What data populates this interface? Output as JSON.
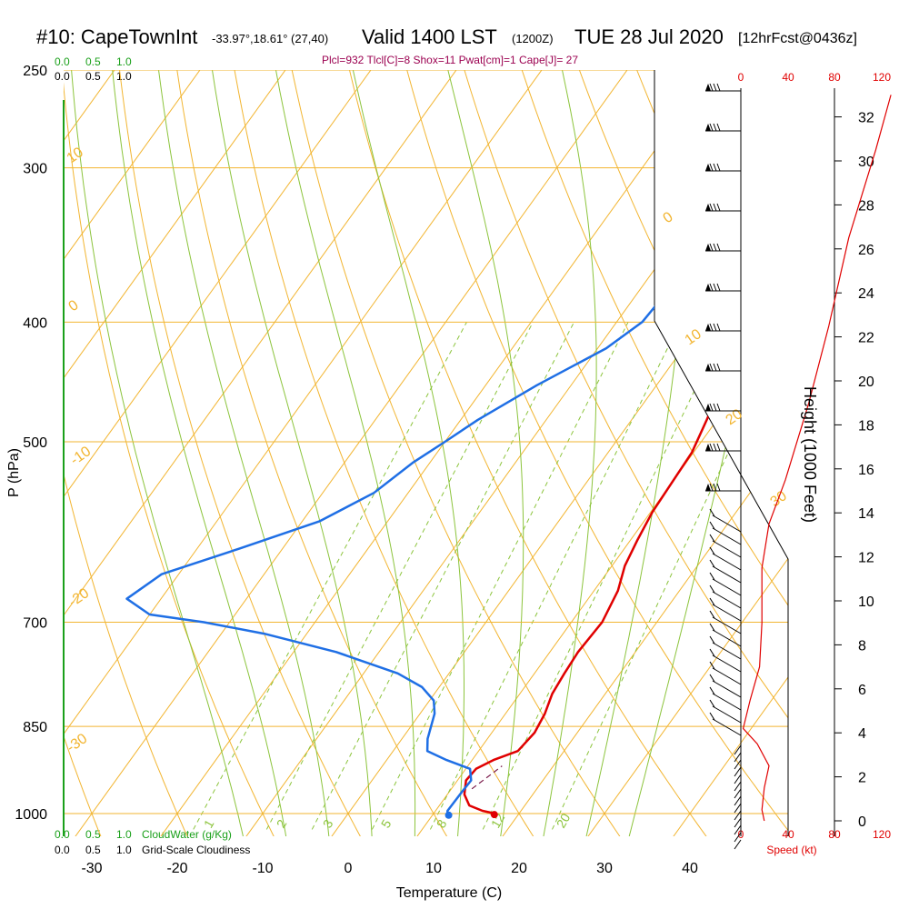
{
  "header": {
    "station": "#10: CapeTownInt",
    "coords": "-33.97°,18.61° (27,40)",
    "valid": "Valid 1400 LST",
    "zulu": "(1200Z)",
    "date": "TUE 28 Jul 2020",
    "forecast": "[12hrFcst@0436z]"
  },
  "params_text": "Plcl=932 Tlcl[C]=8 Shox=11 Pwat[cm]=1 Cape[J]= 27",
  "scales": {
    "cloudwater_ticks": [
      "0.0",
      "0.5",
      "1.0"
    ],
    "cloudiness_ticks": [
      "0.0",
      "0.5",
      "1.0"
    ],
    "cloudwater_label": "CloudWater (g/Kg)",
    "cloudiness_label": "Grid-Scale Cloudiness",
    "speed_ticks": [
      "0",
      "40",
      "80",
      "120"
    ],
    "speed_label": "Speed (kt)"
  },
  "chart_data": {
    "type": "line",
    "subtype": "skew-T log-P sounding",
    "xlabel": "Temperature (C)",
    "ylabel": "P (hPa)",
    "y2label": "Height (1000 Feet)",
    "x_ticks": [
      -30,
      -20,
      -10,
      0,
      10,
      20,
      30,
      40
    ],
    "p_ticks": [
      250,
      300,
      400,
      500,
      700,
      850,
      1000
    ],
    "height_ticks": [
      0,
      2,
      4,
      6,
      8,
      10,
      12,
      14,
      16,
      18,
      20,
      22,
      24,
      26,
      28,
      30,
      32
    ],
    "isotherm_labels": [
      "10",
      "0",
      "-10",
      "-20",
      "-30",
      "0",
      "10",
      "20",
      "30"
    ],
    "mixing_ratio_labels": [
      "1",
      "2",
      "3",
      "5",
      "8",
      "12",
      "20"
    ],
    "series": [
      {
        "color": "#e00000",
        "points": [
          [
            17.2,
            1000
          ],
          [
            15.5,
            995
          ],
          [
            13.5,
            985
          ],
          [
            12.0,
            965
          ],
          [
            11.0,
            940
          ],
          [
            11.2,
            920
          ],
          [
            12.5,
            905
          ],
          [
            14.6,
            890
          ],
          [
            15.0,
            860
          ],
          [
            14.6,
            830
          ],
          [
            13.8,
            800
          ],
          [
            13.5,
            770
          ],
          [
            13.3,
            740
          ],
          [
            13.6,
            700
          ],
          [
            12.8,
            660
          ],
          [
            11.5,
            630
          ],
          [
            10.8,
            600
          ],
          [
            10.2,
            570
          ],
          [
            10.0,
            540
          ],
          [
            9.8,
            510
          ],
          [
            8.8,
            480
          ],
          [
            7.2,
            440
          ],
          [
            5.5,
            400
          ],
          [
            4.0,
            370
          ],
          [
            3.0,
            345
          ],
          [
            1.5,
            320
          ],
          [
            -0.5,
            300
          ],
          [
            -5.0,
            270
          ]
        ]
      },
      {
        "color": "#1f6fe5",
        "points": [
          [
            11.7,
            1002
          ],
          [
            11.4,
            995
          ],
          [
            11.5,
            960
          ],
          [
            11.6,
            940
          ],
          [
            10.5,
            920
          ],
          [
            7.0,
            905
          ],
          [
            4.0,
            890
          ],
          [
            3.0,
            870
          ],
          [
            1.7,
            830
          ],
          [
            0.5,
            810
          ],
          [
            -2.0,
            790
          ],
          [
            -6.0,
            770
          ],
          [
            -15.0,
            740
          ],
          [
            -25.0,
            715
          ],
          [
            -33.0,
            700
          ],
          [
            -40.0,
            690
          ],
          [
            -44.0,
            670
          ],
          [
            -42.0,
            640
          ],
          [
            -35.0,
            610
          ],
          [
            -28.0,
            580
          ],
          [
            -24.0,
            550
          ],
          [
            -22.0,
            520
          ],
          [
            -20.0,
            500
          ],
          [
            -18.0,
            480
          ],
          [
            -14.0,
            450
          ],
          [
            -9.0,
            420
          ],
          [
            -7.0,
            400
          ],
          [
            -6.5,
            370
          ],
          [
            -7.5,
            350
          ],
          [
            -9.0,
            330
          ],
          [
            -12.0,
            305
          ],
          [
            -16.0,
            285
          ],
          [
            -22.0,
            265
          ]
        ]
      }
    ],
    "parcel": [
      [
        12.4,
        955
      ],
      [
        13.4,
        930
      ],
      [
        14.0,
        915
      ]
    ],
    "surface_temp_marker": [
      17.2,
      1002
    ],
    "surface_dew_marker": [
      11.9,
      1003
    ],
    "wind_speed_profile": {
      "color": "#e00000",
      "points": [
        [
          20,
          0.0
        ],
        [
          18,
          0.5
        ],
        [
          20,
          1.5
        ],
        [
          24,
          2.5
        ],
        [
          14,
          3.5
        ],
        [
          2,
          4.2
        ],
        [
          8,
          5.5
        ],
        [
          16,
          7.0
        ],
        [
          18,
          9.0
        ],
        [
          18,
          11.5
        ],
        [
          24,
          13.5
        ],
        [
          38,
          15.5
        ],
        [
          58,
          19.0
        ],
        [
          75,
          22.5
        ],
        [
          92,
          26.5
        ],
        [
          115,
          30.5
        ],
        [
          128,
          33.0
        ]
      ]
    }
  }
}
